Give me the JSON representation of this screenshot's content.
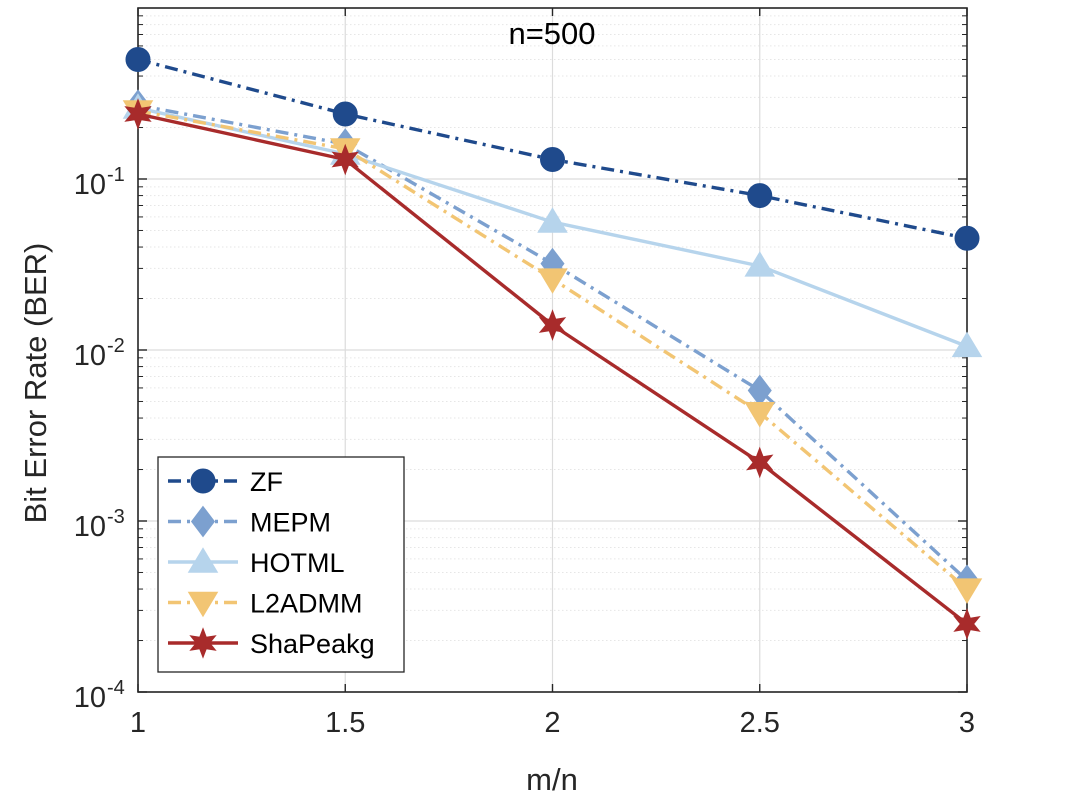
{
  "chart_data": {
    "type": "line",
    "title": "n=500",
    "xlabel": "m/n",
    "ylabel": "Bit Error Rate (BER)",
    "yscale": "log",
    "grid": true,
    "legend_position": "bottom-left",
    "xlim": [
      1,
      3
    ],
    "ylim": [
      0.0001,
      1
    ],
    "x": [
      1,
      1.5,
      2,
      2.5,
      3
    ],
    "xticks": [
      1,
      1.5,
      2,
      2.5,
      3
    ],
    "xtick_labels": [
      "1",
      "1.5",
      "2",
      "2.5",
      "3"
    ],
    "yticks": [
      {
        "base": "10",
        "exp": "-1",
        "value": 0.1
      },
      {
        "base": "10",
        "exp": "-2",
        "value": 0.01
      },
      {
        "base": "10",
        "exp": "-3",
        "value": 0.001
      },
      {
        "base": "10",
        "exp": "-4",
        "value": 0.0001
      }
    ],
    "series": [
      {
        "name": "ZF",
        "color": "#1f4a8c",
        "dash": "dashdot",
        "marker": "circle",
        "values": [
          0.5,
          0.24,
          0.13,
          0.08,
          0.045
        ]
      },
      {
        "name": "MEPM",
        "color": "#7ca0cf",
        "dash": "dashdot",
        "marker": "diamond",
        "values": [
          0.27,
          0.16,
          0.032,
          0.0058,
          0.00045
        ]
      },
      {
        "name": "HOTML",
        "color": "#b6d4ec",
        "dash": "solid",
        "marker": "triangle-up",
        "values": [
          0.26,
          0.14,
          0.056,
          0.031,
          0.0105
        ]
      },
      {
        "name": "L2ADMM",
        "color": "#f2c573",
        "dash": "dashdot",
        "marker": "triangle-down",
        "values": [
          0.25,
          0.15,
          0.026,
          0.0043,
          0.0004
        ]
      },
      {
        "name": "ShaPeakg",
        "color": "#a82b2b",
        "dash": "solid",
        "marker": "star",
        "values": [
          0.24,
          0.13,
          0.014,
          0.0022,
          0.00025
        ]
      }
    ]
  }
}
